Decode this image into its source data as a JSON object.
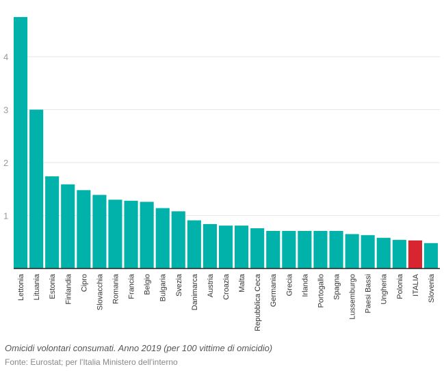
{
  "chart_data": {
    "type": "bar",
    "title": "",
    "xlabel": "",
    "ylabel": "",
    "ylim": [
      0,
      4.8
    ],
    "yticks": [
      1,
      2,
      3,
      4
    ],
    "grid": true,
    "categories": [
      "Lettonia",
      "Lituania",
      "Estonia",
      "Finlandia",
      "Cipro",
      "Slovacchia",
      "Romania",
      "Francia",
      "Belgio",
      "Bulgaria",
      "Svezia",
      "Danimarca",
      "Austria",
      "Croazia",
      "Malta",
      "Repubblica Ceca",
      "Germania",
      "Grecia",
      "Irlanda",
      "Portogallo",
      "Spagna",
      "Lussemburgo",
      "Paesi Bassi",
      "Ungheria",
      "Polonia",
      "ITALIA",
      "Slovenia"
    ],
    "values": [
      4.75,
      3.0,
      1.74,
      1.59,
      1.48,
      1.39,
      1.3,
      1.28,
      1.26,
      1.14,
      1.08,
      0.91,
      0.84,
      0.81,
      0.81,
      0.76,
      0.71,
      0.71,
      0.71,
      0.71,
      0.71,
      0.65,
      0.63,
      0.58,
      0.54,
      0.53,
      0.48
    ],
    "highlight": "ITALIA",
    "colors": {
      "default": "#00b2a9",
      "highlight": "#d7262f",
      "grid": "#e6e6e6",
      "axis": "#222222"
    }
  },
  "caption": "Omicidi volontari consumati. Anno 2019 (per 100 vittime di omicidio)",
  "source": "Fonte: Eurostat; per l'Italia Ministero dell'interno"
}
